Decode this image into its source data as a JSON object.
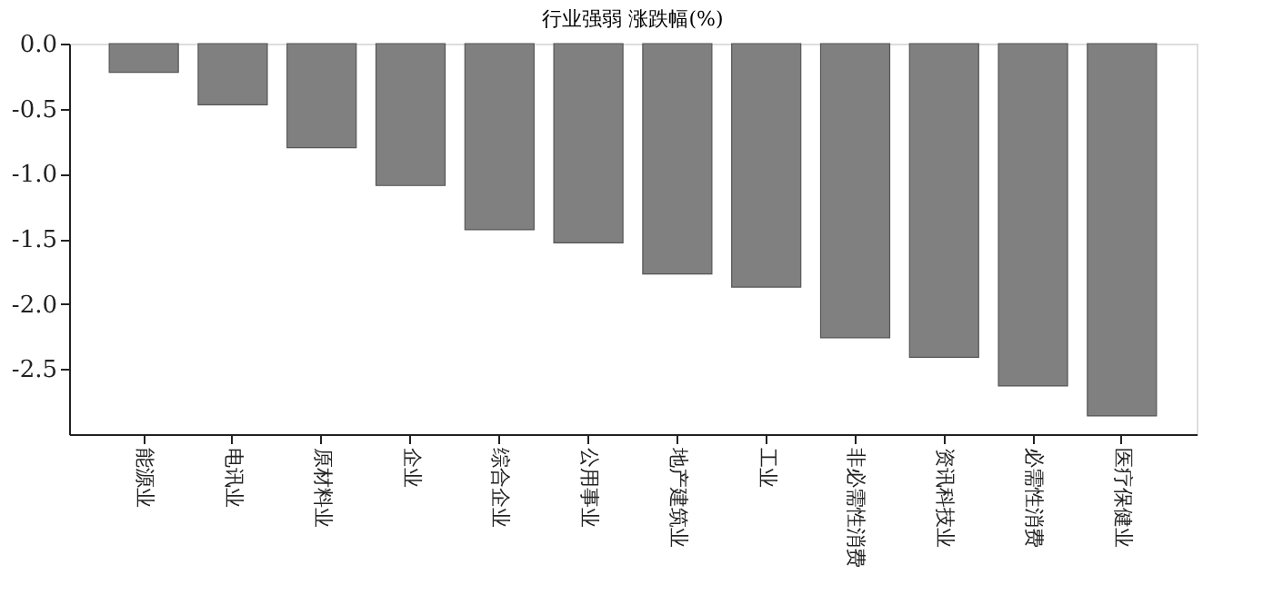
{
  "chart_data": {
    "type": "bar",
    "title": "行业强弱 涨跌幅(%)",
    "categories": [
      "能源业",
      "电讯业",
      "原材料业",
      "企业",
      "综合企业",
      "公用事业",
      "地产建筑业",
      "工业",
      "非必需性消费",
      "资讯科技业",
      "必需性消费",
      "医疗保健业"
    ],
    "values": [
      -0.22,
      -0.47,
      -0.8,
      -1.09,
      -1.43,
      -1.53,
      -1.77,
      -1.87,
      -2.26,
      -2.41,
      -2.63,
      -2.86
    ],
    "color": "#808080",
    "ylim": [
      -3.0,
      0.0
    ],
    "yticks": [
      {
        "value": 0.0,
        "label": "0.0"
      },
      {
        "value": -0.5,
        "label": "-0.5"
      },
      {
        "value": -1.0,
        "label": "-1.0"
      },
      {
        "value": -1.5,
        "label": "-1.5"
      },
      {
        "value": -2.0,
        "label": "-2.0"
      },
      {
        "value": -2.5,
        "label": "-2.5"
      }
    ],
    "grid": false
  }
}
